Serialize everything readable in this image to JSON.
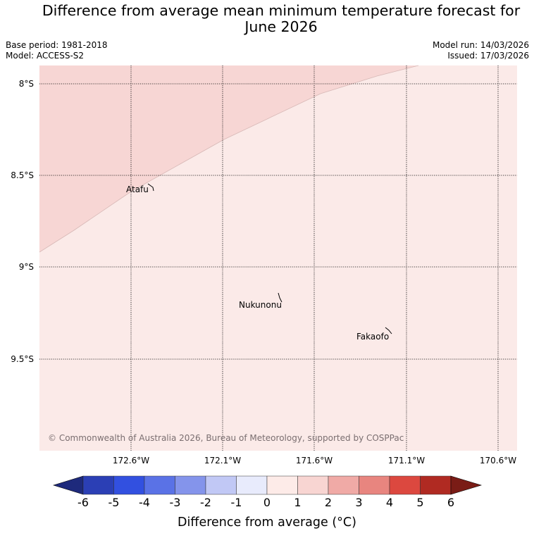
{
  "title_line1": "Difference from average mean minimum temperature forecast for",
  "title_line2": "June 2026",
  "base_period": "Base period: 1981-2018",
  "model": "Model: ACCESS-S2",
  "model_run": "Model run: 14/03/2026",
  "issued": "Issued: 17/03/2026",
  "map": {
    "latitude_labels": [
      "8°S",
      "8.5°S",
      "9°S",
      "9.5°S"
    ],
    "longitude_labels": [
      "172.6°W",
      "172.1°W",
      "171.6°W",
      "171.1°W",
      "170.6°W"
    ],
    "places": [
      {
        "name": "Atafu"
      },
      {
        "name": "Nukunonu"
      },
      {
        "name": "Fakaofo"
      }
    ],
    "region_colors": {
      "anomaly_0_to_1": "#fbeae8",
      "anomaly_1_to_2": "#f7d6d4"
    },
    "copyright": "© Commonwealth of Australia 2026, Bureau of Meteorology, supported by COSPPac"
  },
  "colorbar": {
    "ticks": [
      "-6",
      "-5",
      "-4",
      "-3",
      "-2",
      "-1",
      "0",
      "1",
      "2",
      "3",
      "4",
      "5",
      "6"
    ],
    "colors": [
      "#1e2a7c",
      "#2b3fb5",
      "#3250e0",
      "#5a72e6",
      "#8494eb",
      "#c1c8f5",
      "#e8ebfc",
      "#fdebe8",
      "#f8d5d2",
      "#f0aaa6",
      "#e8857f",
      "#dc483f",
      "#b02a22",
      "#7a1c16"
    ],
    "label": "Difference from average (°C)"
  }
}
